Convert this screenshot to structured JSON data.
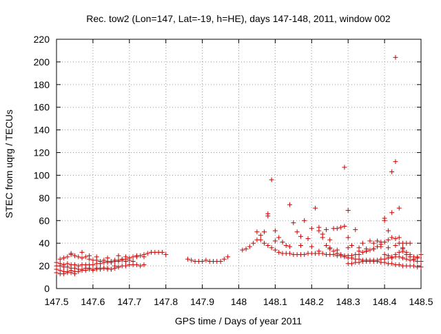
{
  "chart_data": {
    "type": "scatter",
    "title": "Rec. tow2 (Lon=147, Lat=-19, h=HE), days 147-148, 2011, window 002",
    "xlabel": "GPS time / Days of year 2011",
    "ylabel": "STEC from uqrg / TECUs",
    "xlim": [
      147.5,
      148.5
    ],
    "ylim": [
      0,
      220
    ],
    "x_ticks": [
      147.5,
      147.6,
      147.7,
      147.8,
      147.9,
      148,
      148.1,
      148.2,
      148.3,
      148.4,
      148.5
    ],
    "x_tick_labels": [
      "147.5",
      "147.6",
      "147.7",
      "147.8",
      "147.9",
      "148",
      "148.1",
      "148.2",
      "148.3",
      "148.4",
      "148.5"
    ],
    "y_ticks": [
      0,
      20,
      40,
      60,
      80,
      100,
      120,
      140,
      160,
      180,
      200,
      220
    ],
    "y_tick_labels": [
      "0",
      "20",
      "40",
      "60",
      "80",
      "100",
      "120",
      "140",
      "160",
      "180",
      "200",
      "220"
    ],
    "grid": true,
    "marker": "plus",
    "marker_color": "#cc0000",
    "series": [
      {
        "points": [
          [
            147.5,
            20
          ],
          [
            147.51,
            20
          ],
          [
            147.52,
            19
          ],
          [
            147.53,
            19
          ],
          [
            147.54,
            18
          ],
          [
            147.55,
            18
          ],
          [
            147.56,
            17
          ],
          [
            147.57,
            17
          ],
          [
            147.58,
            18
          ],
          [
            147.59,
            18
          ],
          [
            147.6,
            17
          ],
          [
            147.61,
            18
          ],
          [
            147.62,
            18
          ],
          [
            147.63,
            18
          ],
          [
            147.64,
            18
          ],
          [
            147.65,
            17
          ],
          [
            147.66,
            18
          ],
          [
            147.67,
            19
          ],
          [
            147.68,
            20
          ],
          [
            147.69,
            20
          ],
          [
            147.7,
            21
          ],
          [
            147.71,
            21
          ],
          [
            147.72,
            21
          ],
          [
            147.73,
            20
          ],
          [
            147.74,
            21
          ],
          [
            147.5,
            17
          ],
          [
            147.51,
            16
          ],
          [
            147.52,
            15
          ],
          [
            147.53,
            15
          ],
          [
            147.54,
            16
          ],
          [
            147.55,
            15
          ],
          [
            147.56,
            15
          ],
          [
            147.57,
            16
          ],
          [
            147.58,
            16
          ],
          [
            147.59,
            17
          ],
          [
            147.6,
            16
          ],
          [
            147.61,
            17
          ],
          [
            147.62,
            17
          ],
          [
            147.63,
            18
          ],
          [
            147.64,
            17
          ],
          [
            147.65,
            17
          ],
          [
            147.66,
            20
          ],
          [
            147.67,
            19
          ],
          [
            147.5,
            14
          ],
          [
            147.51,
            13
          ],
          [
            147.52,
            13
          ],
          [
            147.53,
            14
          ],
          [
            147.54,
            14
          ],
          [
            147.55,
            13
          ],
          [
            147.5,
            23
          ],
          [
            147.51,
            22
          ],
          [
            147.52,
            21
          ],
          [
            147.53,
            22
          ],
          [
            147.54,
            21
          ],
          [
            147.55,
            21
          ],
          [
            147.56,
            20
          ],
          [
            147.57,
            21
          ],
          [
            147.58,
            21
          ],
          [
            147.59,
            21
          ],
          [
            147.6,
            21
          ],
          [
            147.61,
            22
          ],
          [
            147.62,
            22
          ],
          [
            147.63,
            23
          ],
          [
            147.64,
            23
          ],
          [
            147.65,
            23
          ],
          [
            147.66,
            24
          ],
          [
            147.67,
            25
          ],
          [
            147.68,
            26
          ],
          [
            147.69,
            26
          ],
          [
            147.7,
            27
          ],
          [
            147.71,
            28
          ],
          [
            147.72,
            28
          ],
          [
            147.73,
            29
          ],
          [
            147.74,
            30
          ],
          [
            147.75,
            31
          ],
          [
            147.76,
            32
          ],
          [
            147.77,
            32
          ],
          [
            147.78,
            32
          ],
          [
            147.79,
            32
          ],
          [
            147.8,
            30
          ],
          [
            147.51,
            26
          ],
          [
            147.52,
            27
          ],
          [
            147.53,
            28
          ],
          [
            147.54,
            30
          ],
          [
            147.55,
            29
          ],
          [
            147.56,
            28
          ],
          [
            147.57,
            27
          ],
          [
            147.58,
            28
          ],
          [
            147.59,
            26
          ],
          [
            147.6,
            25
          ],
          [
            147.61,
            25
          ],
          [
            147.62,
            24
          ],
          [
            147.63,
            25
          ],
          [
            147.64,
            24
          ],
          [
            147.65,
            24
          ],
          [
            147.66,
            25
          ],
          [
            147.67,
            24
          ],
          [
            147.68,
            25
          ],
          [
            147.69,
            24
          ],
          [
            147.7,
            25
          ],
          [
            147.71,
            24
          ],
          [
            147.54,
            31
          ],
          [
            147.57,
            32
          ],
          [
            147.59,
            29
          ],
          [
            147.61,
            28
          ],
          [
            147.64,
            27
          ],
          [
            147.67,
            29
          ],
          [
            147.69,
            28
          ],
          [
            147.72,
            29
          ],
          [
            147.74,
            28
          ],
          [
            147.86,
            26
          ],
          [
            147.87,
            25
          ],
          [
            147.88,
            24
          ],
          [
            147.89,
            24
          ],
          [
            147.9,
            24
          ],
          [
            147.91,
            25
          ],
          [
            147.92,
            24
          ],
          [
            147.93,
            24
          ],
          [
            147.94,
            24
          ],
          [
            147.95,
            24
          ],
          [
            147.96,
            26
          ],
          [
            147.97,
            28
          ],
          [
            148.01,
            34
          ],
          [
            148.02,
            35
          ],
          [
            148.03,
            37
          ],
          [
            148.04,
            40
          ],
          [
            148.05,
            43
          ],
          [
            148.06,
            43
          ],
          [
            148.07,
            40
          ],
          [
            148.08,
            38
          ],
          [
            148.09,
            36
          ],
          [
            148.1,
            34
          ],
          [
            148.11,
            32
          ],
          [
            148.12,
            31
          ],
          [
            148.13,
            31
          ],
          [
            148.14,
            31
          ],
          [
            148.15,
            30
          ],
          [
            148.16,
            30
          ],
          [
            148.17,
            30
          ],
          [
            148.18,
            30
          ],
          [
            148.19,
            31
          ],
          [
            148.2,
            31
          ],
          [
            148.21,
            31
          ],
          [
            148.22,
            31
          ],
          [
            148.23,
            31
          ],
          [
            148.24,
            30
          ],
          [
            148.25,
            30
          ],
          [
            148.26,
            30
          ],
          [
            148.27,
            29
          ],
          [
            148.28,
            29
          ],
          [
            148.29,
            28
          ],
          [
            148.3,
            27
          ],
          [
            148.31,
            27
          ],
          [
            148.32,
            26
          ],
          [
            148.33,
            26
          ],
          [
            148.34,
            25
          ],
          [
            148.35,
            25
          ],
          [
            148.36,
            24
          ],
          [
            148.37,
            24
          ],
          [
            148.38,
            24
          ],
          [
            148.39,
            23
          ],
          [
            148.4,
            23
          ],
          [
            148.41,
            22
          ],
          [
            148.42,
            22
          ],
          [
            148.43,
            21
          ],
          [
            148.44,
            21
          ],
          [
            148.45,
            20
          ],
          [
            148.46,
            20
          ],
          [
            148.47,
            20
          ],
          [
            148.48,
            20
          ],
          [
            148.49,
            19
          ],
          [
            148.5,
            19
          ],
          [
            148.05,
            50
          ],
          [
            148.06,
            47
          ],
          [
            148.07,
            50
          ],
          [
            148.08,
            66
          ],
          [
            148.08,
            64
          ],
          [
            148.09,
            96
          ],
          [
            148.1,
            51
          ],
          [
            148.11,
            45
          ],
          [
            148.12,
            41
          ],
          [
            148.13,
            38
          ],
          [
            148.14,
            74
          ],
          [
            148.15,
            58
          ],
          [
            148.16,
            50
          ],
          [
            148.17,
            46
          ],
          [
            148.18,
            60
          ],
          [
            148.19,
            44
          ],
          [
            148.2,
            53
          ],
          [
            148.21,
            71
          ],
          [
            148.22,
            54
          ],
          [
            148.22,
            51
          ],
          [
            148.23,
            48
          ],
          [
            148.23,
            45
          ],
          [
            148.24,
            52
          ],
          [
            148.25,
            43
          ],
          [
            148.26,
            53
          ],
          [
            148.27,
            53
          ],
          [
            148.28,
            54
          ],
          [
            148.29,
            55
          ],
          [
            148.29,
            107
          ],
          [
            148.3,
            45
          ],
          [
            148.3,
            69
          ],
          [
            148.31,
            38
          ],
          [
            148.32,
            52
          ],
          [
            148.33,
            36
          ],
          [
            148.34,
            40
          ],
          [
            148.35,
            33
          ],
          [
            148.36,
            42
          ],
          [
            148.37,
            40
          ],
          [
            148.38,
            42
          ],
          [
            148.39,
            41
          ],
          [
            148.4,
            62
          ],
          [
            148.4,
            60
          ],
          [
            148.41,
            51
          ],
          [
            148.42,
            103
          ],
          [
            148.42,
            67
          ],
          [
            148.43,
            112
          ],
          [
            148.43,
            204
          ],
          [
            148.44,
            45
          ],
          [
            148.44,
            71
          ],
          [
            148.45,
            40
          ],
          [
            148.46,
            40
          ],
          [
            148.47,
            40
          ],
          [
            148.1,
            42
          ],
          [
            148.14,
            37
          ],
          [
            148.17,
            38
          ],
          [
            148.2,
            37
          ],
          [
            148.22,
            33
          ],
          [
            148.25,
            35
          ],
          [
            148.27,
            34
          ],
          [
            148.3,
            36
          ],
          [
            148.33,
            33
          ],
          [
            148.35,
            35
          ],
          [
            148.37,
            35
          ],
          [
            148.39,
            37
          ],
          [
            148.41,
            36
          ],
          [
            148.43,
            38
          ],
          [
            148.45,
            36
          ],
          [
            148.24,
            38
          ],
          [
            148.25,
            36
          ],
          [
            148.26,
            33
          ],
          [
            148.27,
            31
          ],
          [
            148.28,
            30
          ],
          [
            148.29,
            29
          ],
          [
            148.3,
            29
          ],
          [
            148.31,
            29
          ],
          [
            148.32,
            30
          ],
          [
            148.33,
            30
          ],
          [
            148.34,
            32
          ],
          [
            148.35,
            33
          ],
          [
            148.36,
            34
          ],
          [
            148.37,
            35
          ],
          [
            148.38,
            37
          ],
          [
            148.39,
            39
          ],
          [
            148.4,
            41
          ],
          [
            148.41,
            43
          ],
          [
            148.42,
            45
          ],
          [
            148.43,
            44
          ],
          [
            148.44,
            40
          ],
          [
            148.45,
            35
          ],
          [
            148.46,
            30
          ],
          [
            148.47,
            28
          ],
          [
            148.48,
            26
          ],
          [
            148.49,
            28
          ],
          [
            148.5,
            30
          ],
          [
            148.3,
            22
          ],
          [
            148.31,
            22
          ],
          [
            148.32,
            23
          ],
          [
            148.33,
            23
          ],
          [
            148.34,
            24
          ],
          [
            148.35,
            24
          ],
          [
            148.36,
            25
          ],
          [
            148.37,
            25
          ],
          [
            148.38,
            25
          ],
          [
            148.39,
            26
          ],
          [
            148.4,
            26
          ],
          [
            148.41,
            27
          ],
          [
            148.42,
            27
          ],
          [
            148.43,
            28
          ],
          [
            148.44,
            28
          ],
          [
            148.45,
            27
          ],
          [
            148.46,
            26
          ],
          [
            148.47,
            25
          ],
          [
            148.48,
            25
          ],
          [
            148.49,
            24
          ],
          [
            148.5,
            24
          ],
          [
            148.4,
            30
          ],
          [
            148.41,
            29
          ],
          [
            148.42,
            28
          ],
          [
            148.43,
            30
          ],
          [
            148.44,
            32
          ],
          [
            148.45,
            33
          ],
          [
            148.46,
            32
          ],
          [
            148.47,
            30
          ],
          [
            148.48,
            28
          ],
          [
            148.49,
            27
          ]
        ]
      }
    ]
  }
}
